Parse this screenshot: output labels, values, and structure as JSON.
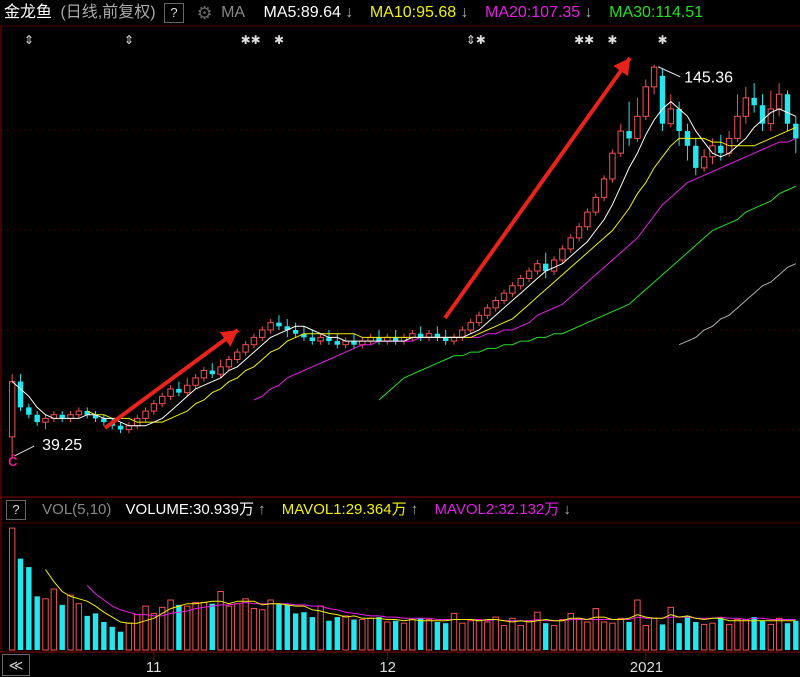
{
  "header": {
    "stock_name": "金龙鱼",
    "mode": "(日线,前复权)",
    "help": "?",
    "gear_icon": "gear-icon",
    "ma_label": "MA",
    "ma5": "MA5:89.64",
    "ma10": "MA10:95.68",
    "ma20": "MA20:107.35",
    "ma30": "MA30:114.51",
    "arrow_down": "↓"
  },
  "volume_header": {
    "help": "?",
    "vol_label": "VOL(5,10)",
    "volume": "VOLUME:30.939万",
    "mavol1": "MAVOL1:29.364万",
    "mavol2": "MAVOL2:32.132万",
    "arrow_up": "↑",
    "arrow_down": "↓"
  },
  "colors": {
    "up": "#f05252",
    "down": "#23e6ee",
    "ma5": "#ffffff",
    "ma10": "#f2f200",
    "ma20": "#e61ee6",
    "ma30": "#22e022",
    "ma60": "#b0b0b0",
    "mavol1": "#f2f200",
    "mavol2": "#e61ee6",
    "arrow": "#e8231c",
    "grid": "#4a0000"
  },
  "chart_data": {
    "type": "candlestick",
    "price_annotations": {
      "high_label": "145.36",
      "low_label": "39.25"
    },
    "x_tick_labels": [
      "11",
      "12",
      "2021"
    ],
    "x_tick_index": [
      17,
      45,
      76
    ],
    "event_markers": [
      {
        "index": 2,
        "symbol": "⇕"
      },
      {
        "index": 14,
        "symbol": "⇕"
      },
      {
        "index": 28,
        "symbol": "✱✱"
      },
      {
        "index": 32,
        "symbol": "✱"
      },
      {
        "index": 55,
        "symbol": "⇕✱"
      },
      {
        "index": 68,
        "symbol": "✱✱"
      },
      {
        "index": 72,
        "symbol": "✱"
      },
      {
        "index": 78,
        "symbol": "✱"
      }
    ],
    "price_range": [
      36,
      150
    ],
    "candles": [
      [
        45,
        60,
        62,
        39.25
      ],
      [
        60,
        53,
        62,
        52
      ],
      [
        53,
        51,
        54,
        50
      ],
      [
        51,
        49,
        52,
        48
      ],
      [
        49,
        50,
        51,
        47
      ],
      [
        50,
        51,
        52,
        49
      ],
      [
        51,
        50,
        52,
        49
      ],
      [
        50,
        51,
        52,
        49
      ],
      [
        51,
        52,
        53,
        50
      ],
      [
        52,
        51,
        53,
        50
      ],
      [
        51,
        50,
        52,
        49
      ],
      [
        50,
        49,
        51,
        48
      ],
      [
        49,
        48,
        50,
        47
      ],
      [
        48,
        47,
        49,
        46
      ],
      [
        47,
        48,
        49,
        46
      ],
      [
        48,
        50,
        51,
        47
      ],
      [
        50,
        52,
        53,
        49
      ],
      [
        52,
        54,
        55,
        51
      ],
      [
        54,
        56,
        57,
        53
      ],
      [
        56,
        58,
        59,
        55
      ],
      [
        58,
        57,
        60,
        56
      ],
      [
        57,
        59,
        61,
        56
      ],
      [
        59,
        61,
        62,
        58
      ],
      [
        61,
        63,
        64,
        60
      ],
      [
        63,
        62,
        65,
        61
      ],
      [
        62,
        64,
        66,
        61
      ],
      [
        64,
        66,
        67,
        63
      ],
      [
        66,
        68,
        69,
        65
      ],
      [
        68,
        70,
        71,
        67
      ],
      [
        70,
        72,
        73,
        69
      ],
      [
        72,
        74,
        75,
        71
      ],
      [
        74,
        76,
        77,
        73
      ],
      [
        76,
        75,
        78,
        74
      ],
      [
        75,
        74,
        77,
        72
      ],
      [
        74,
        73,
        76,
        72
      ],
      [
        73,
        72,
        75,
        71
      ],
      [
        72,
        71,
        74,
        70
      ],
      [
        71,
        72,
        73,
        70
      ],
      [
        72,
        71,
        74,
        70
      ],
      [
        71,
        70,
        73,
        69
      ],
      [
        70,
        71,
        72,
        69
      ],
      [
        71,
        70,
        73,
        69
      ],
      [
        70,
        71,
        72,
        69
      ],
      [
        71,
        72,
        73,
        70
      ],
      [
        72,
        71,
        74,
        70
      ],
      [
        71,
        72,
        73,
        70
      ],
      [
        72,
        71,
        74,
        70
      ],
      [
        71,
        72,
        73,
        70
      ],
      [
        72,
        73,
        74,
        71
      ],
      [
        73,
        72,
        75,
        71
      ],
      [
        72,
        73,
        74,
        71
      ],
      [
        73,
        72,
        75,
        71
      ],
      [
        72,
        71,
        74,
        70
      ],
      [
        71,
        72,
        73,
        70
      ],
      [
        72,
        74,
        75,
        71
      ],
      [
        74,
        76,
        77,
        73
      ],
      [
        76,
        78,
        79,
        75
      ],
      [
        78,
        80,
        81,
        77
      ],
      [
        80,
        82,
        83,
        79
      ],
      [
        82,
        84,
        85,
        81
      ],
      [
        84,
        86,
        87,
        83
      ],
      [
        86,
        88,
        89,
        85
      ],
      [
        88,
        90,
        91,
        87
      ],
      [
        90,
        92,
        93,
        89
      ],
      [
        92,
        90,
        95,
        88
      ],
      [
        90,
        93,
        94,
        89
      ],
      [
        93,
        96,
        97,
        92
      ],
      [
        96,
        99,
        100,
        95
      ],
      [
        99,
        102,
        103,
        98
      ],
      [
        102,
        106,
        107,
        101
      ],
      [
        106,
        110,
        111,
        105
      ],
      [
        110,
        115,
        116,
        109
      ],
      [
        115,
        122,
        123,
        114
      ],
      [
        122,
        128,
        130,
        121
      ],
      [
        128,
        126,
        136,
        124
      ],
      [
        126,
        132,
        137,
        125
      ],
      [
        132,
        140,
        142,
        131
      ],
      [
        140,
        145.36,
        146,
        138
      ],
      [
        143,
        130,
        145,
        128
      ],
      [
        130,
        134,
        138,
        129
      ],
      [
        134,
        128,
        136,
        124
      ],
      [
        128,
        124,
        130,
        120
      ],
      [
        124,
        118,
        126,
        116
      ],
      [
        118,
        121,
        123,
        117
      ],
      [
        121,
        124,
        126,
        119
      ],
      [
        124,
        122,
        127,
        120
      ],
      [
        122,
        126,
        128,
        121
      ],
      [
        126,
        132,
        138,
        125
      ],
      [
        132,
        137,
        140,
        130
      ],
      [
        137,
        135,
        141,
        133
      ],
      [
        135,
        130,
        138,
        128
      ],
      [
        130,
        134,
        139,
        128
      ],
      [
        134,
        138,
        141,
        132
      ],
      [
        138,
        130,
        139,
        128
      ],
      [
        130,
        126,
        132,
        122
      ]
    ],
    "ma5": [
      60,
      58,
      56,
      53,
      51,
      50,
      50,
      50,
      50,
      51,
      51,
      50,
      50,
      49,
      48,
      48,
      48,
      49,
      50,
      52,
      54,
      56,
      58,
      59,
      60,
      61,
      63,
      64,
      66,
      68,
      70,
      72,
      73,
      74,
      75,
      75,
      74,
      73,
      72,
      72,
      71,
      71,
      71,
      71,
      71,
      71,
      71,
      71,
      72,
      72,
      72,
      72,
      72,
      72,
      72,
      73,
      74,
      76,
      78,
      80,
      82,
      84,
      86,
      88,
      90,
      91,
      92,
      94,
      96,
      98,
      101,
      104,
      108,
      113,
      118,
      122,
      127,
      131,
      134,
      136,
      134,
      132,
      128,
      125,
      122,
      121,
      122,
      124,
      126,
      129,
      131,
      133,
      134,
      133,
      132
    ],
    "ma10": [
      null,
      null,
      null,
      null,
      null,
      null,
      null,
      null,
      null,
      52,
      51,
      51,
      50,
      50,
      50,
      49,
      49,
      49,
      49,
      50,
      51,
      52,
      54,
      55,
      57,
      58,
      60,
      61,
      63,
      64,
      66,
      68,
      69,
      71,
      72,
      73,
      73,
      73,
      73,
      73,
      73,
      73,
      72,
      72,
      72,
      72,
      72,
      72,
      72,
      72,
      72,
      72,
      72,
      72,
      72,
      72,
      73,
      74,
      75,
      76,
      77,
      79,
      81,
      83,
      85,
      87,
      89,
      91,
      93,
      95,
      97,
      99,
      101,
      104,
      107,
      111,
      114,
      118,
      121,
      124,
      126,
      126,
      126,
      126,
      125,
      125,
      124,
      124,
      124,
      124,
      125,
      126,
      127,
      128,
      129
    ],
    "ma20": [
      null,
      null,
      null,
      null,
      null,
      null,
      null,
      null,
      null,
      null,
      null,
      null,
      null,
      null,
      null,
      null,
      null,
      null,
      null,
      null,
      null,
      null,
      null,
      null,
      null,
      null,
      null,
      null,
      null,
      55,
      56,
      58,
      59,
      61,
      62,
      63,
      64,
      65,
      66,
      67,
      68,
      69,
      70,
      70,
      71,
      71,
      71,
      71,
      71,
      72,
      72,
      72,
      72,
      72,
      72,
      72,
      72,
      73,
      73,
      74,
      74,
      75,
      76,
      78,
      79,
      80,
      81,
      83,
      85,
      87,
      89,
      91,
      93,
      95,
      97,
      99,
      102,
      105,
      108,
      110,
      112,
      114,
      115,
      116,
      117,
      118,
      119,
      120,
      121,
      122,
      123,
      124,
      125,
      125,
      126
    ],
    "ma30": [
      null,
      null,
      null,
      null,
      null,
      null,
      null,
      null,
      null,
      null,
      null,
      null,
      null,
      null,
      null,
      null,
      null,
      null,
      null,
      null,
      null,
      null,
      null,
      null,
      null,
      null,
      null,
      null,
      null,
      null,
      null,
      null,
      null,
      null,
      null,
      null,
      null,
      null,
      null,
      null,
      null,
      null,
      null,
      null,
      55,
      57,
      59,
      61,
      62,
      63,
      64,
      65,
      66,
      67,
      67,
      68,
      68,
      69,
      69,
      70,
      70,
      71,
      71,
      72,
      72,
      73,
      73,
      74,
      75,
      76,
      77,
      78,
      79,
      80,
      81,
      83,
      85,
      87,
      89,
      91,
      93,
      95,
      97,
      99,
      101,
      102,
      103,
      104,
      106,
      107,
      108,
      109,
      111,
      112,
      113
    ],
    "ma60": [
      null,
      null,
      null,
      null,
      null,
      null,
      null,
      null,
      null,
      null,
      null,
      null,
      null,
      null,
      null,
      null,
      null,
      null,
      null,
      null,
      null,
      null,
      null,
      null,
      null,
      null,
      null,
      null,
      null,
      null,
      null,
      null,
      null,
      null,
      null,
      null,
      null,
      null,
      null,
      null,
      null,
      null,
      null,
      null,
      null,
      null,
      null,
      null,
      null,
      null,
      null,
      null,
      null,
      null,
      null,
      null,
      null,
      null,
      null,
      null,
      null,
      null,
      null,
      null,
      null,
      null,
      null,
      null,
      null,
      null,
      null,
      null,
      null,
      null,
      null,
      null,
      null,
      null,
      null,
      null,
      70,
      71,
      72,
      74,
      75,
      77,
      78,
      80,
      82,
      84,
      86,
      87,
      89,
      91,
      92
    ],
    "volume": [
      100,
      75,
      68,
      44,
      42,
      50,
      37,
      45,
      38,
      28,
      30,
      23,
      19,
      15,
      22,
      29,
      36,
      30,
      35,
      41,
      37,
      36,
      39,
      39,
      38,
      48,
      36,
      38,
      42,
      34,
      33,
      41,
      38,
      37,
      30,
      31,
      27,
      36,
      24,
      27,
      28,
      25,
      25,
      26,
      27,
      23,
      24,
      22,
      25,
      26,
      25,
      23,
      22,
      30,
      22,
      24,
      24,
      23,
      27,
      20,
      26,
      20,
      24,
      31,
      22,
      20,
      25,
      30,
      26,
      23,
      34,
      23,
      22,
      26,
      23,
      41,
      20,
      26,
      21,
      35,
      22,
      28,
      23,
      21,
      22,
      26,
      21,
      25,
      25,
      27,
      24,
      21,
      26,
      22,
      24
    ],
    "mavol_range": [
      0,
      105
    ],
    "mavol1": [
      null,
      null,
      null,
      null,
      66,
      56,
      48,
      44,
      42,
      40,
      36,
      31,
      27,
      23,
      22,
      22,
      24,
      26,
      30,
      34,
      36,
      38,
      38,
      39,
      40,
      40,
      38,
      40,
      40,
      40,
      37,
      38,
      38,
      37,
      36,
      36,
      33,
      32,
      30,
      29,
      27,
      28,
      26,
      26,
      26,
      25,
      25,
      24,
      25,
      24,
      24,
      24,
      24,
      25,
      25,
      25,
      24,
      25,
      25,
      24,
      23,
      24,
      23,
      24,
      25,
      24,
      24,
      26,
      26,
      25,
      27,
      27,
      25,
      25,
      26,
      29,
      27,
      26,
      26,
      29,
      27,
      28,
      26,
      25,
      26,
      26,
      24,
      24,
      24,
      24,
      24,
      24,
      24,
      24,
      24
    ],
    "mavol2": [
      null,
      null,
      null,
      null,
      null,
      null,
      null,
      null,
      null,
      53,
      46,
      41,
      36,
      33,
      31,
      29,
      29,
      28,
      28,
      30,
      31,
      32,
      34,
      35,
      36,
      37,
      37,
      38,
      39,
      38,
      38,
      38,
      38,
      38,
      37,
      37,
      36,
      36,
      34,
      33,
      31,
      30,
      29,
      28,
      28,
      27,
      27,
      26,
      26,
      26,
      26,
      25,
      25,
      25,
      25,
      25,
      25,
      24,
      25,
      24,
      24,
      24,
      24,
      25,
      24,
      24,
      24,
      25,
      25,
      25,
      25,
      25,
      25,
      25,
      25,
      27,
      26,
      26,
      26,
      27,
      27,
      27,
      26,
      26,
      26,
      27,
      26,
      26,
      25,
      26,
      26,
      25,
      25,
      25,
      25
    ]
  }
}
